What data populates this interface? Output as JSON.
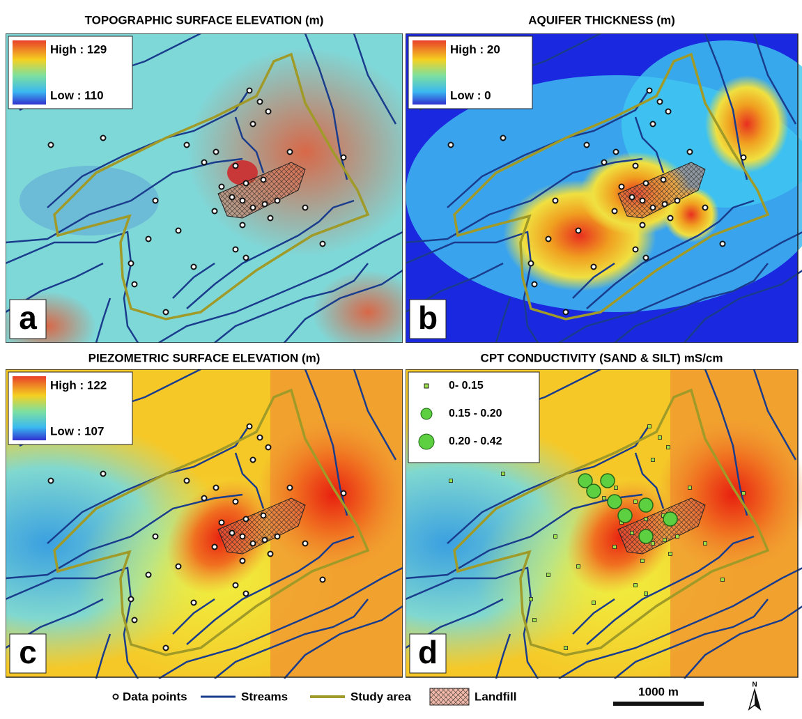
{
  "panels": [
    {
      "title": "TOPOGRAPHIC SURFACE ELEVATION (m)",
      "legend_high": "High : 129",
      "legend_low": "Low : 110",
      "letter": "a"
    },
    {
      "title": "AQUIFER THICKNESS (m)",
      "legend_high": "High : 20",
      "legend_low": "Low : 0",
      "letter": "b"
    },
    {
      "title": "PIEZOMETRIC SURFACE ELEVATION (m)",
      "legend_high": "High : 122",
      "legend_low": "Low : 107",
      "letter": "c"
    },
    {
      "title": "CPT CONDUCTIVITY (SAND & SILT) mS/cm",
      "classes": [
        "0- 0.15",
        "0.15 - 0.20",
        "0.20 - 0.42"
      ],
      "letter": "d"
    }
  ],
  "legend": {
    "data_points": "Data points",
    "streams": "Streams",
    "study_area": "Study area",
    "landfill": "Landfill",
    "scale": "1000 m",
    "north": "N"
  }
}
